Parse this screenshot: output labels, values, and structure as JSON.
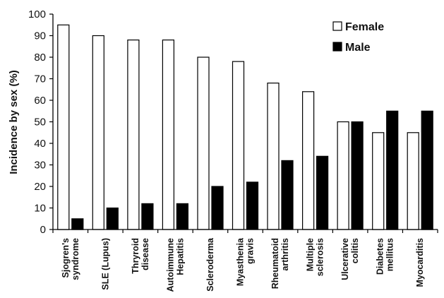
{
  "chart_data": {
    "type": "bar",
    "categories": [
      [
        "Sjogren's",
        "syndrome"
      ],
      [
        "SLE (Lupus)"
      ],
      [
        "Thryroid",
        "disease"
      ],
      [
        "Autoimmune",
        "Hepatitis"
      ],
      [
        "Scleroderma"
      ],
      [
        "Myasthenia",
        "gravis"
      ],
      [
        "Rheumatoid",
        "arthritis"
      ],
      [
        "Multiple",
        "sclerosis"
      ],
      [
        "Ulcerative",
        "colitis"
      ],
      [
        "Diabetes",
        "mellitus"
      ],
      [
        "Myocarditis"
      ]
    ],
    "series": [
      {
        "name": "Female",
        "fill": "#ffffff",
        "values": [
          95,
          90,
          88,
          88,
          80,
          78,
          68,
          64,
          50,
          45,
          45
        ]
      },
      {
        "name": "Male",
        "fill": "#000000",
        "values": [
          5,
          10,
          12,
          12,
          20,
          22,
          32,
          34,
          50,
          55,
          55
        ]
      }
    ],
    "ylabel": "Incidence by sex (%)",
    "ylim": [
      0,
      100
    ],
    "yticks": [
      "0",
      "10",
      "20",
      "30",
      "40",
      "50",
      "60",
      "70",
      "80",
      "90",
      "100"
    ],
    "grid": false,
    "legend_position": "top-right"
  }
}
